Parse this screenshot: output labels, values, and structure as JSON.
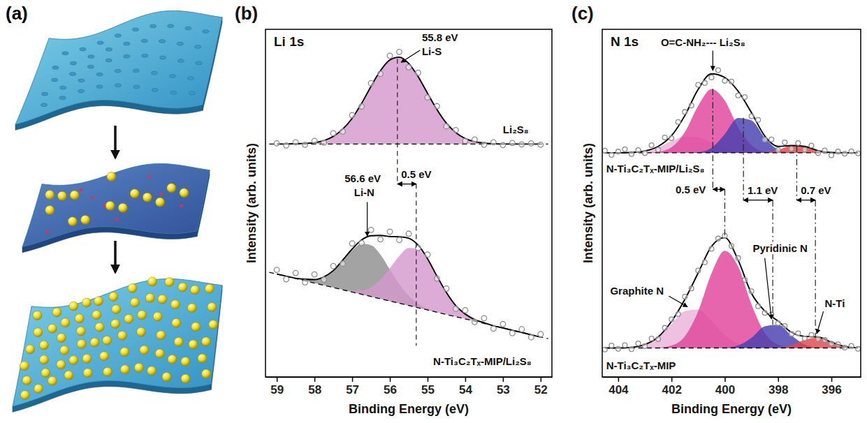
{
  "diagram": {
    "panel_label": "(a)"
  },
  "chart_data": [
    {
      "type": "line",
      "panel_label": "(b)",
      "title": "Li 1s",
      "x_label": "Binding Energy (eV)",
      "y_label": "Intensity (arb. units)",
      "xlim": [
        59.3,
        51.7
      ],
      "xticks": [
        59,
        58,
        57,
        56,
        55,
        54,
        53,
        52
      ],
      "ylim": [
        0,
        100
      ],
      "tick_labels": "x",
      "x": [
        59,
        58.75,
        58.5,
        58.25,
        58,
        57.75,
        57.5,
        57.25,
        57,
        56.75,
        56.5,
        56.25,
        56,
        55.75,
        55.5,
        55.25,
        55,
        54.75,
        54.5,
        54.25,
        54,
        53.75,
        53.5,
        53.25,
        53,
        52.75,
        52.5,
        52.25,
        52
      ],
      "series": [
        {
          "type": "area",
          "color": "#d49acd",
          "base": 67,
          "values": [
            67.0,
            67.0,
            67.1,
            67.2,
            67.4,
            68.0,
            69.2,
            71.3,
            74.4,
            78.7,
            83.6,
            88.1,
            91.2,
            92.0,
            90.2,
            86.4,
            81.6,
            76.9,
            73.0,
            70.3,
            68.6,
            67.7,
            67.3,
            67.1,
            67.0,
            67.0,
            67.0,
            67.0,
            67.0
          ]
        },
        {
          "type": "line",
          "color": "#000000",
          "values": [
            67.0,
            67.0,
            67.1,
            67.2,
            67.4,
            68.0,
            69.2,
            71.3,
            74.4,
            78.7,
            83.6,
            88.1,
            91.2,
            92.0,
            90.2,
            86.4,
            81.6,
            76.9,
            73.0,
            70.3,
            68.6,
            67.7,
            67.3,
            67.1,
            67.0,
            67.0,
            67.0,
            67.0,
            67.0
          ]
        },
        {
          "type": "line",
          "color": "#000000",
          "line_style": "dashed",
          "x": [
            59.2,
            51.8
          ],
          "values": [
            67,
            67
          ]
        },
        {
          "type": "scatter",
          "marker": "circle",
          "color": "#8c8c8c",
          "values": [
            67.2,
            66.6,
            67.5,
            66.8,
            67.9,
            67.4,
            70.1,
            70.6,
            75.3,
            77.8,
            84.5,
            87.2,
            92.4,
            93.5,
            89.1,
            87.5,
            80.4,
            77.9,
            72.1,
            71.0,
            67.9,
            68.3,
            66.8,
            67.5,
            66.7,
            67.3,
            66.9,
            67.2,
            66.8
          ]
        },
        {
          "type": "area",
          "color": "#8f8f8f",
          "base": [
            29.6,
            29.0,
            28.3,
            27.7,
            27.0,
            26.4,
            25.7,
            25.1,
            24.4,
            23.8,
            23.1,
            22.5,
            21.8,
            21.2,
            20.6,
            19.9,
            19.3,
            18.6,
            18.0,
            17.3,
            16.7,
            16.0,
            15.4,
            14.7,
            14.1,
            13.4,
            12.8,
            12.1,
            11.5
          ],
          "values": [
            29.6,
            29.0,
            28.4,
            28.1,
            28.0,
            28.8,
            30.6,
            33.4,
            36.4,
            38.3,
            37.9,
            35.2,
            30.9,
            26.7,
            23.4,
            21.1,
            19.7,
            18.7,
            18.0,
            17.3,
            16.7,
            16.0,
            15.4,
            14.7,
            14.1,
            13.4,
            12.8,
            12.1,
            11.5
          ]
        },
        {
          "type": "area",
          "color": "#d49acd",
          "base": [
            29.6,
            29.0,
            28.3,
            27.7,
            27.0,
            26.4,
            25.7,
            25.1,
            24.4,
            23.8,
            23.1,
            22.5,
            21.8,
            21.2,
            20.6,
            19.9,
            19.3,
            18.6,
            18.0,
            17.3,
            16.7,
            16.0,
            15.4,
            14.7,
            14.1,
            13.4,
            12.8,
            12.1,
            11.5
          ],
          "values": [
            29.6,
            29.0,
            28.3,
            27.7,
            27.0,
            26.4,
            25.7,
            25.2,
            24.8,
            24.9,
            25.8,
            28.0,
            31.3,
            34.8,
            37.1,
            36.7,
            33.6,
            28.9,
            24.2,
            20.5,
            18.1,
            16.5,
            15.6,
            14.7,
            14.1,
            13.4,
            12.8,
            12.1,
            11.5
          ]
        },
        {
          "type": "line",
          "color": "#000000",
          "values": [
            29.6,
            29.0,
            28.4,
            28.1,
            28.0,
            28.8,
            30.6,
            33.6,
            36.8,
            39.4,
            40.6,
            40.7,
            40.4,
            40.3,
            39.9,
            37.9,
            34.0,
            29.0,
            24.3,
            20.5,
            18.1,
            16.5,
            15.6,
            14.7,
            14.1,
            13.4,
            12.8,
            12.1,
            11.5
          ]
        },
        {
          "type": "line",
          "color": "#000000",
          "line_style": "dashed",
          "x": [
            59.2,
            51.8
          ],
          "values": [
            30.1,
            11
          ]
        },
        {
          "type": "scatter",
          "marker": "circle",
          "color": "#8c8c8c",
          "values": [
            30.8,
            28.1,
            29.9,
            27.2,
            29.5,
            28.0,
            31.9,
            32.6,
            38.4,
            38.5,
            42.3,
            39.6,
            41.8,
            39.4,
            41.2,
            37.1,
            35.2,
            28.3,
            25.4,
            19.6,
            19.2,
            15.8,
            16.9,
            13.9,
            15.2,
            12.6,
            13.7,
            11.4,
            12.3
          ]
        }
      ],
      "reference_lines": [
        {
          "x": 55.8,
          "y1": 91.5,
          "y2": 55.5,
          "line_style": "dashed"
        },
        {
          "x": 55.3,
          "y1": 55.5,
          "y2": 9,
          "line_style": "dashed"
        }
      ],
      "shifts": [
        {
          "text": "0.5 eV",
          "x1": 55.8,
          "x2": 55.3,
          "y": 55.5,
          "label_x": 55.7,
          "label_y": 57.3
        }
      ],
      "annotations": [
        {
          "text": "55.8 eV",
          "x": 55.15,
          "y": 96.5,
          "arrow": [
            55.2,
            94,
            55.7,
            90.5
          ]
        },
        {
          "text": "Li-S",
          "x": 55.15,
          "y": 92.5
        },
        {
          "text": "Li₂S₈",
          "x": 53.0,
          "y": 70
        },
        {
          "text": "56.6 eV",
          "x": 57.2,
          "y": 56
        },
        {
          "text": "Li-N",
          "x": 56.95,
          "y": 52,
          "arrow": [
            56.6,
            50.3,
            56.6,
            40.5
          ]
        },
        {
          "text": "N-Ti₃C₂Tₓ-MIP/Li₂S₈",
          "x": 54.85,
          "y": 3.5
        }
      ]
    },
    {
      "type": "line",
      "panel_label": "(c)",
      "title": "N 1s",
      "x_label": "Binding Energy (eV)",
      "y_label": "Intensity (arb. units)",
      "xlim": [
        404.6,
        394.9
      ],
      "xticks": [
        404,
        402,
        400,
        398,
        396
      ],
      "ylim": [
        -8,
        106
      ],
      "tick_labels": "x",
      "x": [
        404.5,
        404,
        403.5,
        403,
        402.5,
        402,
        401.5,
        401,
        400.5,
        400,
        399.5,
        399,
        398.5,
        398,
        397.5,
        397,
        396.5,
        396,
        395.5,
        395
      ],
      "series": [
        {
          "type": "area",
          "color": "#eab3da",
          "base": 65.5,
          "values": [
            65.5,
            65.5,
            65.6,
            66.1,
            67.3,
            69.3,
            70.8,
            70.6,
            68.8,
            67.0,
            65.9,
            65.6,
            65.5,
            65.5,
            65.5,
            65.5,
            65.5,
            65.5,
            65.5,
            65.5
          ]
        },
        {
          "type": "area",
          "color": "#e0439a",
          "base": 65.5,
          "values": [
            65.5,
            65.5,
            65.5,
            65.5,
            65.8,
            67.3,
            72.3,
            80.9,
            86.4,
            82.6,
            73.9,
            68.0,
            65.9,
            65.6,
            65.5,
            65.5,
            65.5,
            65.5,
            65.5,
            65.5
          ]
        },
        {
          "type": "area",
          "color": "#4740b0",
          "base": 65.5,
          "values": [
            65.5,
            65.5,
            65.5,
            65.5,
            65.5,
            65.5,
            65.5,
            65.7,
            67.1,
            71.6,
            76.9,
            76.1,
            70.4,
            66.6,
            65.6,
            65.5,
            65.5,
            65.5,
            65.5,
            65.5
          ]
        },
        {
          "type": "area",
          "color": "#e4474b",
          "base": 65.5,
          "values": [
            65.5,
            65.5,
            65.5,
            65.5,
            65.5,
            65.5,
            65.5,
            65.5,
            65.5,
            65.5,
            65.5,
            65.5,
            65.6,
            66.4,
            67.8,
            67.6,
            66.2,
            65.6,
            65.5,
            65.5
          ]
        },
        {
          "type": "line",
          "color": "#000000",
          "values": [
            65.5,
            65.5,
            65.6,
            66.1,
            67.6,
            71.1,
            77.7,
            86.3,
            91.4,
            90.2,
            85.7,
            78.7,
            71.0,
            67.6,
            67.9,
            67.6,
            66.2,
            65.6,
            65.5,
            65.5
          ]
        },
        {
          "type": "line",
          "color": "#000000",
          "line_style": "dashed",
          "x": [
            404.5,
            395
          ],
          "values": [
            65.5,
            65.5
          ]
        },
        {
          "type": "scatter",
          "marker": "circle",
          "color": "#8c8c8c",
          "x": [
            404.5,
            404.25,
            404,
            403.75,
            403.5,
            403.25,
            403,
            402.75,
            402.5,
            402.25,
            402,
            401.75,
            401.5,
            401.25,
            401,
            400.75,
            400.5,
            400.25,
            400,
            399.75,
            399.5,
            399.25,
            399,
            398.75,
            398.5,
            398.25,
            398,
            397.75,
            397.5,
            397.25,
            397,
            396.75,
            396.5,
            396.25,
            396,
            395.75,
            395.5,
            395.25,
            395
          ],
          "values": [
            66.2,
            64.8,
            65.9,
            66.7,
            65.1,
            66.4,
            65.4,
            68.0,
            66.5,
            70.5,
            70.3,
            75.6,
            78.9,
            81.0,
            87.8,
            88.4,
            90.2,
            92.6,
            89.1,
            88.9,
            84.3,
            83.8,
            77.5,
            76.3,
            69.8,
            69.9,
            66.4,
            68.9,
            66.8,
            68.7,
            66.5,
            67.9,
            65.4,
            66.3,
            64.7,
            65.9,
            65.2,
            66.0,
            65.3
          ]
        },
        {
          "type": "area",
          "color": "#eab3da",
          "base": 1.5,
          "values": [
            1.5,
            1.5,
            1.7,
            2.5,
            5.0,
            9.4,
            13.6,
            14.1,
            10.4,
            5.7,
            2.9,
            1.8,
            1.5,
            1.5,
            1.5,
            1.5,
            1.5,
            1.5,
            1.5,
            1.5
          ]
        },
        {
          "type": "area",
          "color": "#e0439a",
          "base": 1.5,
          "values": [
            1.5,
            1.5,
            1.5,
            1.5,
            1.6,
            2.3,
            5.3,
            13.5,
            25.9,
            33.4,
            28.2,
            15.8,
            6.4,
            2.6,
            1.7,
            1.5,
            1.5,
            1.5,
            1.5,
            1.5
          ]
        },
        {
          "type": "area",
          "color": "#4740b0",
          "base": 1.5,
          "values": [
            1.5,
            1.5,
            1.5,
            1.5,
            1.5,
            1.5,
            1.5,
            1.5,
            1.5,
            1.6,
            2.3,
            4.8,
            8.6,
            9.1,
            5.6,
            2.6,
            1.7,
            1.5,
            1.5,
            1.5
          ]
        },
        {
          "type": "area",
          "color": "#e4474b",
          "base": 1.5,
          "values": [
            1.5,
            1.5,
            1.5,
            1.5,
            1.5,
            1.5,
            1.5,
            1.5,
            1.5,
            1.5,
            1.5,
            1.5,
            1.5,
            1.6,
            2.4,
            4.2,
            4.9,
            3.4,
            2.0,
            1.6
          ]
        },
        {
          "type": "line",
          "color": "#000000",
          "values": [
            1.5,
            1.5,
            1.7,
            2.6,
            5.1,
            10.2,
            17.4,
            26.1,
            34.8,
            37.7,
            30.3,
            19.4,
            13.6,
            10.3,
            6.6,
            5.3,
            5.1,
            3.4,
            2.0,
            1.6
          ]
        },
        {
          "type": "line",
          "color": "#000000",
          "line_style": "dashed",
          "x": [
            404.5,
            395
          ],
          "values": [
            1.5,
            1.5
          ]
        },
        {
          "type": "scatter",
          "marker": "circle",
          "color": "#8c8c8c",
          "x": [
            404.5,
            404.25,
            404,
            403.75,
            403.5,
            403.25,
            403,
            402.75,
            402.5,
            402.25,
            402,
            401.75,
            401.5,
            401.25,
            401,
            400.75,
            400.5,
            400.25,
            400,
            399.75,
            399.5,
            399.25,
            399,
            398.75,
            398.5,
            398.25,
            398,
            397.75,
            397.5,
            397.25,
            397,
            396.75,
            396.5,
            396.25,
            396,
            395.75,
            395.5,
            395.25,
            395
          ],
          "values": [
            1.0,
            2.3,
            1.2,
            2.4,
            1.1,
            3.0,
            2.1,
            4.6,
            4.4,
            8.1,
            10.9,
            12.6,
            18.3,
            21.0,
            26.9,
            29.6,
            34.0,
            37.4,
            38.3,
            34.9,
            31.0,
            23.8,
            20.1,
            15.2,
            13.0,
            12.4,
            9.6,
            8.7,
            6.1,
            6.3,
            4.6,
            5.8,
            4.4,
            4.1,
            2.9,
            2.7,
            1.6,
            2.2,
            1.2
          ]
        }
      ],
      "reference_lines": [
        {
          "x": 400.45,
          "y1": 86.5,
          "y2": 53.5,
          "line_style": "dashdot"
        },
        {
          "x": 400.0,
          "y1": 53.5,
          "y2": 37.7,
          "line_style": "dashdot"
        },
        {
          "x": 399.3,
          "y1": 77,
          "y2": 50,
          "line_style": "dashdot"
        },
        {
          "x": 398.2,
          "y1": 50,
          "y2": 9.1,
          "line_style": "dashdot"
        },
        {
          "x": 397.3,
          "y1": 67.8,
          "y2": 50,
          "line_style": "dashdot"
        },
        {
          "x": 396.6,
          "y1": 50,
          "y2": 4.9,
          "line_style": "dashdot"
        }
      ],
      "shifts": [
        {
          "text": "0.5 eV",
          "x1": 400.45,
          "x2": 400.0,
          "y": 53.5,
          "label_x": 401.85,
          "label_y": 52.3
        },
        {
          "text": "1.1 eV",
          "x1": 399.3,
          "x2": 398.2,
          "y": 50,
          "label_x": 399.15,
          "label_y": 52
        },
        {
          "text": "0.7 eV",
          "x1": 397.3,
          "x2": 396.6,
          "y": 50,
          "label_x": 397.15,
          "label_y": 52
        }
      ],
      "annotations": [
        {
          "text": "O=C-NH₂--- Li₂S₈",
          "x": 402.4,
          "y": 100.5,
          "arrow": [
            400.45,
            99,
            400.45,
            92.5
          ]
        },
        {
          "text": "N-Ti₃C₂Tₓ-MIP/Li₂S₈",
          "x": 404.45,
          "y": 59
        },
        {
          "text": "Graphite N",
          "x": 404.3,
          "y": 19,
          "arrow": [
            402.1,
            18.5,
            401.4,
            15
          ]
        },
        {
          "text": "Pyridinic N",
          "x": 398.95,
          "y": 33,
          "arrow": [
            398.5,
            31,
            398.25,
            11
          ]
        },
        {
          "text": "N-Ti",
          "x": 396.25,
          "y": 15,
          "arrow": [
            396.3,
            13.5,
            396.55,
            6.2
          ]
        },
        {
          "text": "N-Ti₃C₂Tₓ-MIP",
          "x": 404.45,
          "y": -5.5
        }
      ]
    }
  ]
}
